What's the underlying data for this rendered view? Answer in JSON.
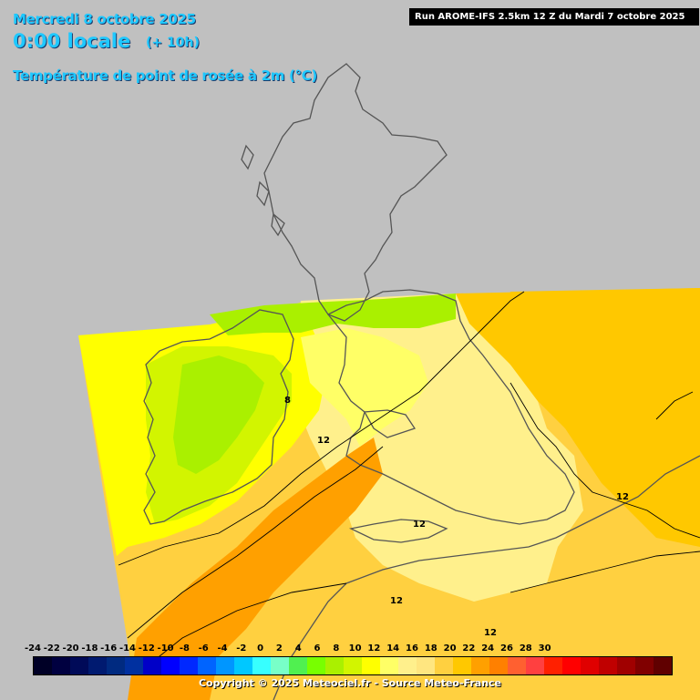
{
  "header": {
    "date": "Mercredi 8 octobre 2025",
    "time": "0:00 locale",
    "offset": "(+ 10h)",
    "parameter": "Température de point de rosée à 2m (°C)"
  },
  "run_info": "Run AROME-IFS 2.5km 12 Z du Mardi 7 octobre 2025",
  "copyright": "Copyright © 2025 Meteociel.fr - Source Meteo-France",
  "contour_labels": [
    {
      "value": "8",
      "near": "east coast of Ireland"
    },
    {
      "value": "12",
      "near": "Irish Sea"
    },
    {
      "value": "12",
      "near": "South Wales / Bristol Channel"
    },
    {
      "value": "12",
      "near": "Southeast England"
    },
    {
      "value": "12",
      "near": "English Channel"
    },
    {
      "value": "12",
      "near": "Brittany"
    }
  ],
  "colors": {
    "no_data": "#c0c0c0",
    "coast": "#555555",
    "contour": "#000000",
    "t4_6": "#aaf000",
    "t6_8": "#d2f500",
    "t8_10": "#ffff00",
    "t10_11": "#ffff66",
    "t11_12": "#fff08c",
    "t12_13": "#ffe680",
    "t13_14": "#ffd040",
    "t14_15": "#ffc800",
    "t15_16": "#ffa000"
  },
  "legend": {
    "labels": [
      "-24",
      "-22",
      "-20",
      "-18",
      "-16",
      "-14",
      "-12",
      "-10",
      "-8",
      "-6",
      "-4",
      "-2",
      "0",
      "2",
      "4",
      "6",
      "8",
      "10",
      "12",
      "14",
      "16",
      "18",
      "20",
      "22",
      "24",
      "26",
      "28",
      "30"
    ],
    "colors": [
      "#000026",
      "#000040",
      "#000a58",
      "#001a70",
      "#002a80",
      "#0030a0",
      "#0000c8",
      "#0000ff",
      "#0028ff",
      "#0064ff",
      "#0096ff",
      "#00c8ff",
      "#37ffff",
      "#78ffc8",
      "#50f050",
      "#78ff00",
      "#aaf000",
      "#d2f500",
      "#ffff00",
      "#ffff66",
      "#fff08c",
      "#ffe680",
      "#ffd040",
      "#ffc800",
      "#ffa000",
      "#ff8000",
      "#ff6030",
      "#ff4040",
      "#ff2000",
      "#ff0000",
      "#e00000",
      "#c00000",
      "#a00000",
      "#800000",
      "#600000"
    ]
  }
}
